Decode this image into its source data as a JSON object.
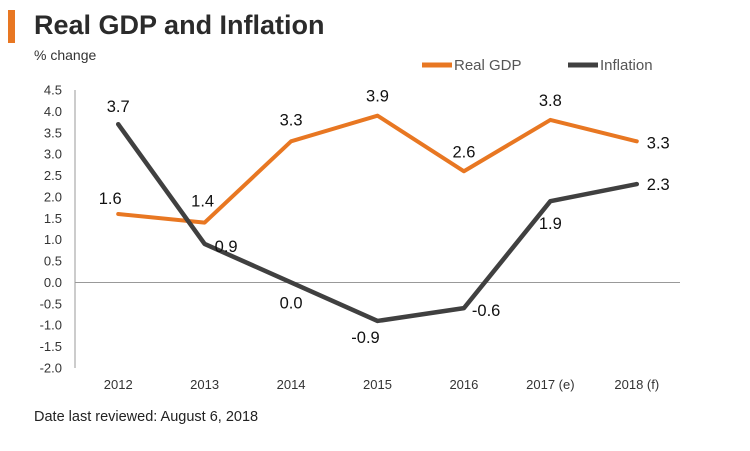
{
  "colors": {
    "accent": "#E87722",
    "inflation": "#404040",
    "axis": "#999999"
  },
  "header": {
    "title": "Real GDP and Inflation",
    "units": "% change"
  },
  "footer": {
    "note": "Date last reviewed: August 6, 2018"
  },
  "chart_data": {
    "type": "line",
    "title": "Real GDP and Inflation",
    "ylabel": "% change",
    "xlabel": "",
    "categories": [
      "2012",
      "2013",
      "2014",
      "2015",
      "2016",
      "2017 (e)",
      "2018 (f)"
    ],
    "ylim": [
      -2.0,
      4.5
    ],
    "yticks": [
      "4.5",
      "4.0",
      "3.5",
      "3.0",
      "2.5",
      "2.0",
      "1.5",
      "1.0",
      "0.5",
      "0.0",
      "-0.5",
      "-1.0",
      "-1.5",
      "-2.0"
    ],
    "legend_position": "top-right",
    "series": [
      {
        "name": "Real GDP",
        "color": "#E87722",
        "values": [
          1.6,
          1.4,
          3.3,
          3.9,
          2.6,
          3.8,
          3.3
        ],
        "labels": [
          "1.6",
          "1.4",
          "3.3",
          "3.9",
          "2.6",
          "3.8",
          "3.3"
        ]
      },
      {
        "name": "Inflation",
        "color": "#404040",
        "values": [
          3.7,
          0.9,
          0.0,
          -0.9,
          -0.6,
          1.9,
          2.3
        ],
        "labels": [
          "3.7",
          "0.9",
          "0.0",
          "-0.9",
          "-0.6",
          "1.9",
          "2.3"
        ]
      }
    ]
  }
}
